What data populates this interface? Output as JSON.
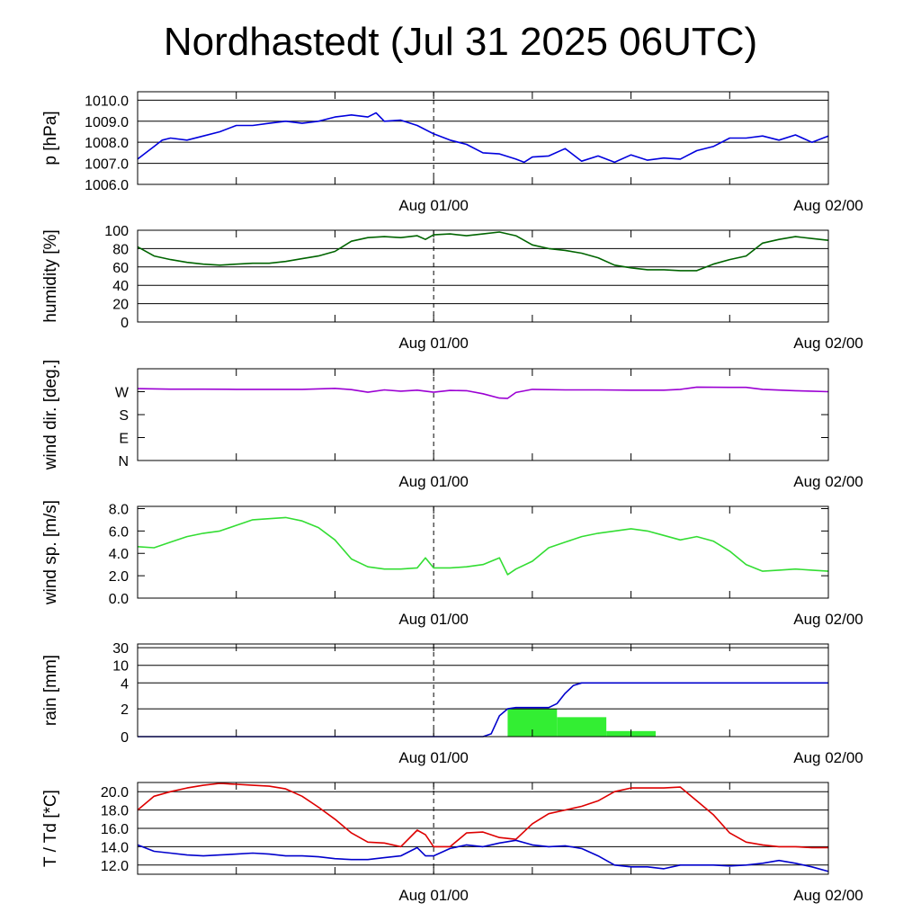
{
  "title": "Nordhastedt (Jul 31 2025 06UTC)",
  "colors": {
    "pressure": "#0000dd",
    "humidity": "#006400",
    "wind_dir": "#9b00d3",
    "wind_speed": "#33dd33",
    "rain_bars": "#33ee33",
    "rain_cumulative": "#0000cc",
    "temperature": "#dd0000",
    "dewpoint": "#0000cc"
  },
  "chart_data": [
    {
      "type": "line",
      "ylabel": "p [hPa]",
      "x": [
        0,
        0.5,
        1,
        1.5,
        2,
        3,
        4,
        5,
        6,
        7,
        8,
        9,
        10,
        11,
        12,
        13,
        14,
        14.5,
        15,
        16,
        17,
        18,
        19,
        20,
        21,
        22,
        23,
        23.5,
        24,
        25,
        26,
        27,
        28,
        29,
        30,
        31,
        32,
        33,
        34,
        35,
        36,
        37,
        38,
        39,
        40,
        41,
        42
      ],
      "series": [
        {
          "values": [
            1007.2,
            1007.5,
            1007.8,
            1008.1,
            1008.2,
            1008.1,
            1008.3,
            1008.5,
            1008.8,
            1008.8,
            1008.9,
            1009.0,
            1008.9,
            1009.0,
            1009.2,
            1009.3,
            1009.2,
            1009.4,
            1009.0,
            1009.05,
            1008.8,
            1008.4,
            1008.1,
            1007.9,
            1007.5,
            1007.45,
            1007.2,
            1007.05,
            1007.3,
            1007.35,
            1007.7,
            1007.1,
            1007.35,
            1007.05,
            1007.4,
            1007.15,
            1007.25,
            1007.2,
            1007.6,
            1007.8,
            1008.2,
            1008.2,
            1008.3,
            1008.1,
            1008.35,
            1008.0,
            1008.3
          ]
        }
      ],
      "ylim": [
        1006.0,
        1010.4
      ],
      "ytick_values": [
        1006,
        1007,
        1008,
        1009,
        1010
      ],
      "yticks": [
        "1006.0",
        "1007.0",
        "1008.0",
        "1009.0",
        "1010.0"
      ],
      "xlim": [
        0,
        42
      ],
      "xtick_positions": [
        18,
        42
      ],
      "xticks": [
        "Aug 01/00",
        "Aug 02/00"
      ],
      "grid": true
    },
    {
      "type": "line",
      "ylabel": "humidity [%]",
      "x": [
        0,
        1,
        2,
        3,
        4,
        5,
        6,
        7,
        8,
        9,
        10,
        11,
        12,
        13,
        14,
        15,
        16,
        17,
        17.5,
        18,
        19,
        20,
        21,
        22,
        23,
        24,
        25,
        26,
        27,
        28,
        29,
        30,
        31,
        32,
        33,
        34,
        35,
        36,
        37,
        38,
        39,
        40,
        41,
        42
      ],
      "series": [
        {
          "values": [
            82,
            72,
            68,
            65,
            63,
            62,
            63,
            64,
            64,
            66,
            69,
            72,
            77,
            88,
            92,
            93,
            92,
            94,
            90,
            95,
            96,
            94,
            96,
            98,
            94,
            84,
            80,
            78,
            75,
            70,
            62,
            59,
            57,
            57,
            56,
            56,
            63,
            68,
            72,
            86,
            90,
            93,
            91,
            89
          ]
        }
      ],
      "ylim": [
        0,
        100
      ],
      "ytick_values": [
        0,
        20,
        40,
        60,
        80,
        100
      ],
      "yticks": [
        "0",
        "20",
        "40",
        "60",
        "80",
        "100"
      ],
      "xlim": [
        0,
        42
      ],
      "xtick_positions": [
        18,
        42
      ],
      "xticks": [
        "Aug 01/00",
        "Aug 02/00"
      ],
      "grid": true
    },
    {
      "type": "line",
      "ylabel": "wind dir. [deg.]",
      "x": [
        0,
        2,
        4,
        6,
        8,
        10,
        12,
        13,
        14,
        15,
        16,
        17,
        18,
        19,
        20,
        21,
        22,
        22.5,
        23,
        24,
        26,
        28,
        30,
        32,
        33,
        34,
        36,
        37,
        38,
        40,
        41,
        42
      ],
      "series": [
        {
          "values": [
            282,
            280,
            280,
            279,
            279,
            279,
            283,
            278,
            268,
            277,
            272,
            276,
            268,
            275,
            274,
            262,
            245,
            244,
            267,
            279,
            277,
            277,
            276,
            276,
            279,
            288,
            287,
            287,
            279,
            274,
            272,
            270
          ]
        }
      ],
      "ylim": [
        0,
        360
      ],
      "ytick_values": [
        0,
        90,
        180,
        270
      ],
      "yticks": [
        "N",
        "E",
        "S",
        "W"
      ],
      "xlim": [
        0,
        42
      ],
      "xtick_positions": [
        18,
        42
      ],
      "xticks": [
        "Aug 01/00",
        "Aug 02/00"
      ],
      "grid": false
    },
    {
      "type": "line",
      "ylabel": "wind sp. [m/s]",
      "x": [
        0,
        1,
        2,
        3,
        4,
        5,
        6,
        7,
        8,
        9,
        10,
        11,
        12,
        13,
        14,
        15,
        16,
        17,
        17.5,
        18,
        19,
        20,
        21,
        22,
        22.5,
        23,
        24,
        25,
        26,
        27,
        28,
        29,
        30,
        31,
        32,
        33,
        34,
        35,
        36,
        37,
        38,
        39,
        40,
        41,
        42
      ],
      "series": [
        {
          "values": [
            4.6,
            4.5,
            5.0,
            5.5,
            5.8,
            6.0,
            6.5,
            7.0,
            7.1,
            7.2,
            6.9,
            6.3,
            5.2,
            3.5,
            2.8,
            2.6,
            2.6,
            2.7,
            3.6,
            2.7,
            2.7,
            2.8,
            3.0,
            3.6,
            2.1,
            2.6,
            3.3,
            4.5,
            5.0,
            5.5,
            5.8,
            6.0,
            6.2,
            6.0,
            5.6,
            5.2,
            5.5,
            5.1,
            4.2,
            3.0,
            2.4,
            2.5,
            2.6,
            2.5,
            2.4
          ]
        }
      ],
      "ylim": [
        0,
        8.2
      ],
      "ytick_values": [
        0,
        2,
        4,
        6,
        8
      ],
      "yticks": [
        "0.0",
        "2.0",
        "4.0",
        "6.0",
        "8.0"
      ],
      "xlim": [
        0,
        42
      ],
      "xtick_positions": [
        18,
        42
      ],
      "xticks": [
        "Aug 01/00",
        "Aug 02/00"
      ],
      "grid": false
    },
    {
      "type": "bar",
      "ylabel": "rain [mm]",
      "bars": [
        {
          "x0": 22.5,
          "x1": 25.5,
          "value": 2.0
        },
        {
          "x0": 25.5,
          "x1": 28.5,
          "value": 1.4
        },
        {
          "x0": 28.5,
          "x1": 31.5,
          "value": 0.4
        }
      ],
      "cumulative": {
        "x": [
          0,
          19,
          21,
          21.5,
          22,
          22.5,
          23,
          25,
          25.5,
          26,
          26.5,
          27,
          42
        ],
        "values": [
          0,
          0,
          0,
          0.2,
          1.5,
          2.0,
          2.1,
          2.1,
          2.4,
          3.2,
          3.8,
          4.0,
          4.0
        ]
      },
      "ytick_values": [
        0,
        2,
        4,
        10,
        30
      ],
      "yticks": [
        "0",
        "2",
        "4",
        "10",
        "30"
      ],
      "xlim": [
        0,
        42
      ],
      "xtick_positions": [
        18,
        42
      ],
      "xticks": [
        "Aug 01/00",
        "Aug 02/00"
      ],
      "grid": true
    },
    {
      "type": "line",
      "ylabel": "T / Td [*C]",
      "x": [
        0,
        1,
        2,
        3,
        4,
        5,
        6,
        7,
        8,
        9,
        10,
        11,
        12,
        13,
        14,
        15,
        16,
        17,
        17.5,
        18,
        19,
        20,
        21,
        22,
        23,
        24,
        25,
        26,
        27,
        28,
        29,
        30,
        31,
        32,
        33,
        34,
        35,
        36,
        37,
        38,
        39,
        40,
        41,
        42
      ],
      "series": [
        {
          "name": "T",
          "values": [
            18.0,
            19.5,
            20.0,
            20.4,
            20.7,
            20.9,
            20.8,
            20.7,
            20.6,
            20.3,
            19.5,
            18.3,
            17.0,
            15.5,
            14.5,
            14.4,
            14.0,
            15.8,
            15.3,
            14.0,
            14.0,
            15.5,
            15.6,
            15.0,
            14.8,
            16.5,
            17.6,
            18.0,
            18.4,
            19.0,
            20.0,
            20.4,
            20.4,
            20.4,
            20.5,
            19.0,
            17.5,
            15.5,
            14.5,
            14.2,
            14.0,
            14.0,
            13.9,
            13.9
          ]
        },
        {
          "name": "Td",
          "values": [
            14.2,
            13.5,
            13.3,
            13.1,
            13.0,
            13.1,
            13.2,
            13.3,
            13.2,
            13.0,
            13.0,
            12.9,
            12.7,
            12.6,
            12.6,
            12.8,
            13.0,
            13.9,
            13.0,
            13.0,
            13.8,
            14.2,
            14.0,
            14.4,
            14.7,
            14.2,
            14.0,
            14.1,
            13.8,
            13.0,
            12.0,
            11.8,
            11.8,
            11.6,
            12.0,
            12.0,
            12.0,
            11.9,
            12.0,
            12.2,
            12.5,
            12.2,
            11.8,
            11.3
          ]
        }
      ],
      "ylim": [
        11.0,
        21.0
      ],
      "ytick_values": [
        12,
        14,
        16,
        18,
        20
      ],
      "yticks": [
        "12.0",
        "14.0",
        "16.0",
        "18.0",
        "20.0"
      ],
      "xlim": [
        0,
        42
      ],
      "xtick_positions": [
        18,
        42
      ],
      "xticks": [
        "Aug 01/00",
        "Aug 02/00"
      ],
      "grid": true
    }
  ]
}
